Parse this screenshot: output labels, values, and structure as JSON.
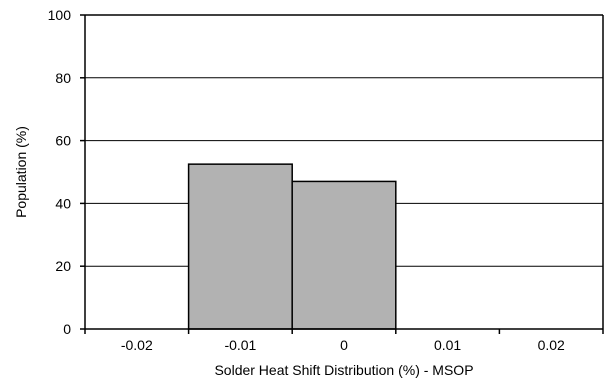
{
  "chart_data": {
    "type": "bar",
    "categories": [
      "-0.02",
      "-0.01",
      "0",
      "0.01",
      "0.02"
    ],
    "values": [
      0,
      52.5,
      47,
      0,
      0
    ],
    "xlabel": "Solder Heat Shift Distribution (%) - MSOP",
    "ylabel": "Population (%)",
    "ylim": [
      0,
      100
    ],
    "yticks": [
      "0",
      "20",
      "40",
      "60",
      "80",
      "100"
    ],
    "grid": true,
    "legend": "none",
    "colors": {
      "bar_fill": "#b2b2b2",
      "bar_stroke": "#000000",
      "gridline": "#000000",
      "axis": "#000000"
    }
  }
}
